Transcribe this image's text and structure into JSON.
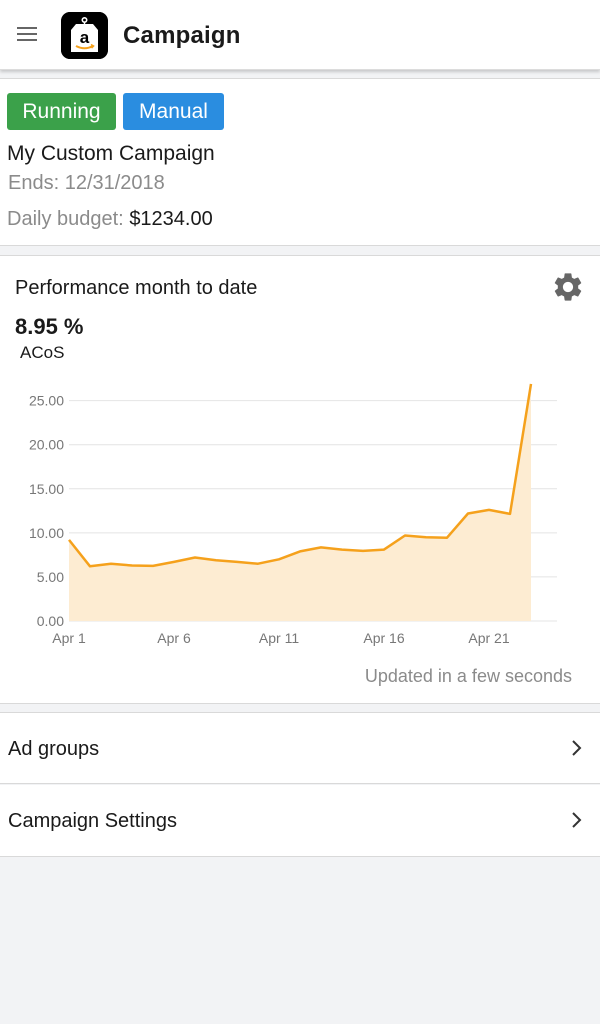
{
  "header": {
    "title": "Campaign",
    "logo_letter": "a"
  },
  "campaign": {
    "status": "Running",
    "type": "Manual",
    "name": "My Custom Campaign",
    "ends": "Ends: 12/31/2018",
    "budget_label": "Daily budget:",
    "budget_value": "$1234.00"
  },
  "performance": {
    "title": "Performance month to date",
    "metric_value": "8.95 %",
    "metric_label": "ACoS",
    "updated": "Updated in a few seconds"
  },
  "chart_data": {
    "type": "area",
    "x": [
      "Apr 1",
      "Apr 2",
      "Apr 3",
      "Apr 4",
      "Apr 5",
      "Apr 6",
      "Apr 7",
      "Apr 8",
      "Apr 9",
      "Apr 10",
      "Apr 11",
      "Apr 12",
      "Apr 13",
      "Apr 14",
      "Apr 15",
      "Apr 16",
      "Apr 17",
      "Apr 18",
      "Apr 19",
      "Apr 20",
      "Apr 21",
      "Apr 22",
      "Apr 23"
    ],
    "values": [
      9.2,
      6.2,
      6.5,
      6.3,
      6.25,
      6.7,
      7.2,
      6.9,
      6.7,
      6.5,
      7.0,
      7.9,
      8.35,
      8.1,
      7.95,
      8.1,
      9.7,
      9.5,
      9.45,
      12.2,
      12.6,
      12.15,
      26.9
    ],
    "tick_labels_x": [
      "Apr 1",
      "Apr 6",
      "Apr 11",
      "Apr 16",
      "Apr 21"
    ],
    "tick_labels_y": [
      "0.00",
      "5.00",
      "10.00",
      "15.00",
      "20.00",
      "25.00"
    ],
    "ylim": [
      0,
      27
    ],
    "grid": true,
    "line_color": "#f5a11c",
    "fill_color": "#fdecd2"
  },
  "menu": [
    {
      "label": "Ad groups"
    },
    {
      "label": "Campaign Settings"
    }
  ],
  "icons": {
    "menu": "hamburger-menu-icon",
    "gear": "gear-icon",
    "chevron": "chevron-right-icon"
  }
}
